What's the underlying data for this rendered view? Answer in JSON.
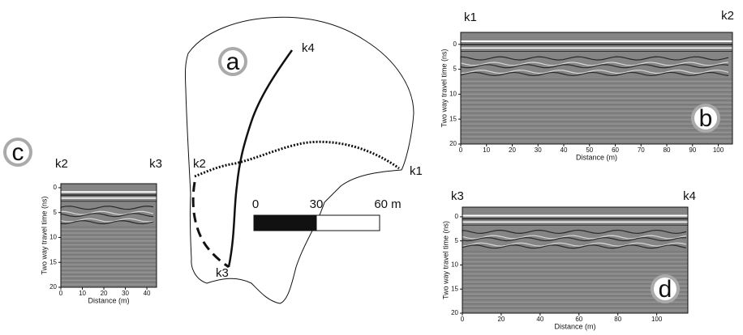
{
  "map": {
    "label": "a",
    "points": {
      "k4": "k4",
      "k2": "k2",
      "k1": "k1",
      "k3": "k3"
    },
    "scale_labels": [
      "0",
      "30",
      "60 m"
    ]
  },
  "panels": [
    {
      "label": "b",
      "left": "k1",
      "right": "k2",
      "x_label": "Distance (m)",
      "y_label": "Two way travel time (ns)",
      "xlim": [
        0,
        105.5
      ],
      "ylim": [
        -2.4,
        20
      ],
      "y_inverted": true,
      "xticks": [
        0,
        10,
        20,
        30,
        40,
        50,
        60,
        70,
        80,
        90,
        100
      ],
      "yticks": [
        0,
        5,
        10,
        15,
        20
      ]
    },
    {
      "label": "c",
      "left": "k2",
      "right": "k3",
      "x_label": "Distance (m)",
      "y_label": "Two way travel time (ns)",
      "xlim": [
        0,
        44.5
      ],
      "ylim": [
        -0.8,
        20
      ],
      "y_inverted": true,
      "xticks": [
        0,
        10,
        20,
        30,
        40
      ],
      "yticks": [
        0,
        5,
        10,
        15,
        20
      ]
    },
    {
      "label": "d",
      "left": "k3",
      "right": "k4",
      "x_label": "Distance (m)",
      "y_label": "Two way travel time (ns)",
      "xlim": [
        0,
        116
      ],
      "ylim": [
        -2,
        20
      ],
      "y_inverted": true,
      "xticks": [
        0,
        20,
        40,
        60,
        80,
        100
      ],
      "yticks": [
        0,
        5,
        10,
        15,
        20
      ]
    }
  ]
}
